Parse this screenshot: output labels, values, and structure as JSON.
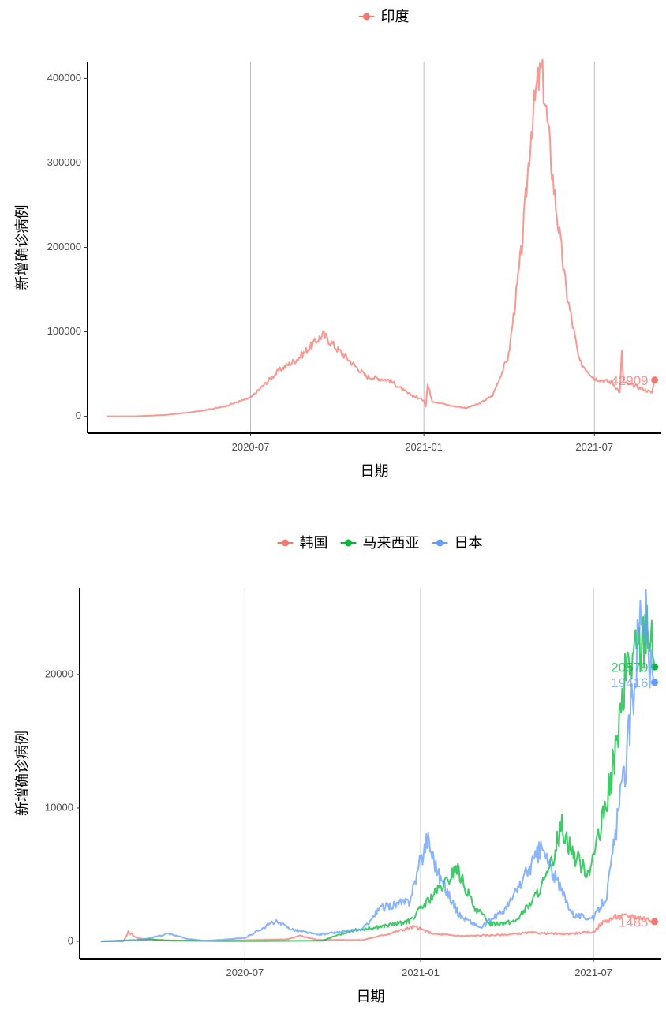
{
  "chart_data": [
    {
      "type": "line",
      "xlabel": "日期",
      "ylabel": "新增确诊病例",
      "x_ticks": [
        "2020-07",
        "2021-01",
        "2021-07"
      ],
      "y_ticks": [
        0,
        100000,
        200000,
        300000,
        400000
      ],
      "ylim": [
        -20000,
        420000
      ],
      "xlim": [
        "2020-01-10",
        "2021-09-10"
      ],
      "grid": "vertical major",
      "legend_position": "top",
      "series": [
        {
          "name": "印度",
          "color": "#F8766D",
          "end_label": "42909",
          "end_value": 42909,
          "points": [
            [
              "2020-01-30",
              0
            ],
            [
              "2020-03-01",
              0
            ],
            [
              "2020-04-01",
              1500
            ],
            [
              "2020-05-01",
              5000
            ],
            [
              "2020-06-01",
              11000
            ],
            [
              "2020-07-01",
              22000
            ],
            [
              "2020-08-01",
              55000
            ],
            [
              "2020-08-20",
              68000
            ],
            [
              "2020-09-16",
              97000
            ],
            [
              "2020-10-01",
              80000
            ],
            [
              "2020-10-15",
              65000
            ],
            [
              "2020-11-01",
              47000
            ],
            [
              "2020-11-25",
              43000
            ],
            [
              "2020-12-15",
              27000
            ],
            [
              "2021-01-01",
              19000
            ],
            [
              "2021-01-03",
              12000
            ],
            [
              "2021-01-05",
              38000
            ],
            [
              "2021-01-10",
              18000
            ],
            [
              "2021-02-01",
              12000
            ],
            [
              "2021-02-15",
              10000
            ],
            [
              "2021-03-01",
              15000
            ],
            [
              "2021-03-15",
              25000
            ],
            [
              "2021-04-01",
              72000
            ],
            [
              "2021-04-15",
              200000
            ],
            [
              "2021-04-25",
              340000
            ],
            [
              "2021-05-01",
              390000
            ],
            [
              "2021-05-06",
              410000
            ],
            [
              "2021-05-10",
              370000
            ],
            [
              "2021-05-20",
              260000
            ],
            [
              "2021-06-01",
              150000
            ],
            [
              "2021-06-15",
              65000
            ],
            [
              "2021-07-01",
              45000
            ],
            [
              "2021-07-20",
              40000
            ],
            [
              "2021-07-28",
              28000
            ],
            [
              "2021-07-30",
              75000
            ],
            [
              "2021-08-01",
              40000
            ],
            [
              "2021-08-15",
              35000
            ],
            [
              "2021-08-31",
              28000
            ],
            [
              "2021-09-03",
              42909
            ]
          ]
        }
      ]
    },
    {
      "type": "line",
      "xlabel": "日期",
      "ylabel": "新增确诊病例",
      "x_ticks": [
        "2020-07",
        "2021-01",
        "2021-07"
      ],
      "y_ticks": [
        0,
        10000,
        20000
      ],
      "ylim": [
        -1300,
        26500
      ],
      "xlim": [
        "2020-01-10",
        "2021-09-10"
      ],
      "grid": "vertical major",
      "legend_position": "top",
      "series": [
        {
          "name": "韩国",
          "color": "#F8766D",
          "end_label": "1485",
          "end_value": 1485,
          "points": [
            [
              "2020-02-01",
              0
            ],
            [
              "2020-02-25",
              0
            ],
            [
              "2020-03-01",
              700
            ],
            [
              "2020-03-10",
              250
            ],
            [
              "2020-04-01",
              80
            ],
            [
              "2020-06-01",
              40
            ],
            [
              "2020-08-15",
              150
            ],
            [
              "2020-08-28",
              420
            ],
            [
              "2020-09-15",
              110
            ],
            [
              "2020-11-01",
              100
            ],
            [
              "2020-11-25",
              500
            ],
            [
              "2020-12-25",
              1100
            ],
            [
              "2021-01-15",
              550
            ],
            [
              "2021-02-15",
              400
            ],
            [
              "2021-04-01",
              500
            ],
            [
              "2021-04-25",
              650
            ],
            [
              "2021-06-01",
              550
            ],
            [
              "2021-07-01",
              700
            ],
            [
              "2021-07-10",
              1400
            ],
            [
              "2021-07-25",
              1850
            ],
            [
              "2021-08-10",
              1900
            ],
            [
              "2021-08-25",
              1700
            ],
            [
              "2021-09-03",
              1485
            ]
          ]
        },
        {
          "name": "马来西亚",
          "color": "#00BA38",
          "end_label": "20579",
          "end_value": 20579,
          "points": [
            [
              "2020-02-01",
              0
            ],
            [
              "2020-03-25",
              150
            ],
            [
              "2020-04-15",
              50
            ],
            [
              "2020-07-01",
              10
            ],
            [
              "2020-09-20",
              50
            ],
            [
              "2020-10-20",
              800
            ],
            [
              "2020-11-20",
              1100
            ],
            [
              "2020-12-20",
              1500
            ],
            [
              "2021-01-15",
              3500
            ],
            [
              "2021-01-30",
              4500
            ],
            [
              "2021-02-07",
              5600
            ],
            [
              "2021-02-25",
              2700
            ],
            [
              "2021-03-15",
              1300
            ],
            [
              "2021-04-10",
              1500
            ],
            [
              "2021-04-28",
              3000
            ],
            [
              "2021-05-15",
              5000
            ],
            [
              "2021-05-29",
              8800
            ],
            [
              "2021-06-10",
              6500
            ],
            [
              "2021-06-25",
              5200
            ],
            [
              "2021-07-08",
              8000
            ],
            [
              "2021-07-20",
              12500
            ],
            [
              "2021-07-30",
              17000
            ],
            [
              "2021-08-05",
              20500
            ],
            [
              "2021-08-15",
              21500
            ],
            [
              "2021-08-22",
              22500
            ],
            [
              "2021-08-26",
              24500
            ],
            [
              "2021-08-31",
              22000
            ],
            [
              "2021-09-03",
              20579
            ]
          ]
        },
        {
          "name": "日本",
          "color": "#619CFF",
          "end_label": "19416",
          "end_value": 19416,
          "points": [
            [
              "2020-02-01",
              0
            ],
            [
              "2020-03-15",
              100
            ],
            [
              "2020-04-12",
              600
            ],
            [
              "2020-05-01",
              200
            ],
            [
              "2020-05-20",
              30
            ],
            [
              "2020-07-01",
              250
            ],
            [
              "2020-08-01",
              1500
            ],
            [
              "2020-08-20",
              900
            ],
            [
              "2020-09-15",
              500
            ],
            [
              "2020-11-01",
              900
            ],
            [
              "2020-11-20",
              2500
            ],
            [
              "2020-12-20",
              3000
            ],
            [
              "2021-01-08",
              7800
            ],
            [
              "2021-01-20",
              5000
            ],
            [
              "2021-02-10",
              2000
            ],
            [
              "2021-03-05",
              1000
            ],
            [
              "2021-04-01",
              2500
            ],
            [
              "2021-04-25",
              5500
            ],
            [
              "2021-05-08",
              7000
            ],
            [
              "2021-05-20",
              5000
            ],
            [
              "2021-06-10",
              2000
            ],
            [
              "2021-07-01",
              1700
            ],
            [
              "2021-07-15",
              3500
            ],
            [
              "2021-07-29",
              10500
            ],
            [
              "2021-08-05",
              14000
            ],
            [
              "2021-08-13",
              20000
            ],
            [
              "2021-08-20",
              25800
            ],
            [
              "2021-08-26",
              23500
            ],
            [
              "2021-08-30",
              20000
            ],
            [
              "2021-09-03",
              19416
            ]
          ]
        }
      ]
    }
  ]
}
